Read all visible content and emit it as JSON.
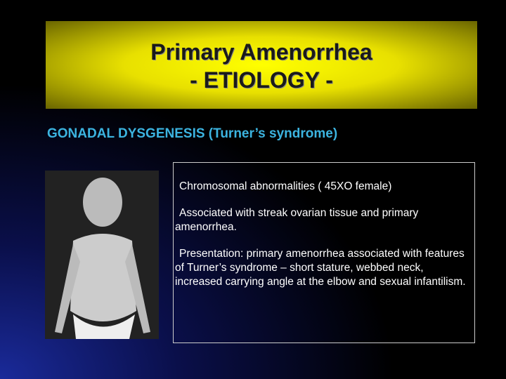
{
  "header": {
    "title_line1": "Primary Amenorrhea",
    "title_line2": "- ETIOLOGY -"
  },
  "subtitle": "GONADAL DYSGENESIS (Turner’s syndrome)",
  "box": {
    "paragraphs": [
      "Chromosomal abnormalities ( 45XO female)",
      "Associated with streak ovarian tissue and primary amenorrhea.",
      "Presentation:  primary amenorrhea associated with features  of  Turner’s  syndrome  –   short stature, webbed neck, increased carrying angle at the elbow and sexual infantilism."
    ]
  }
}
